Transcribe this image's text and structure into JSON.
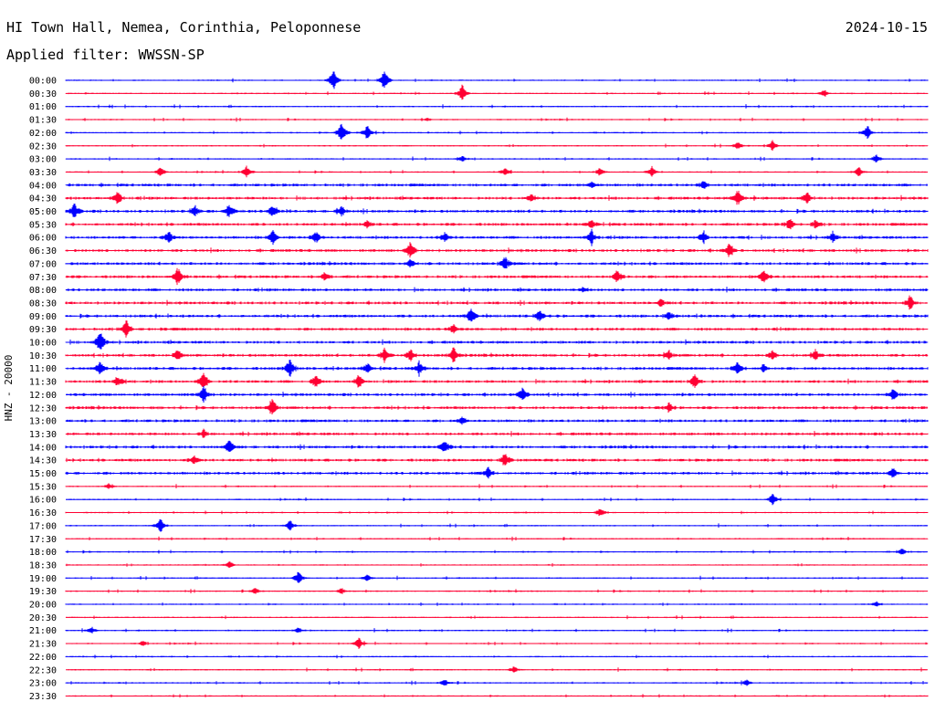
{
  "header": {
    "station": "HI Town Hall, Nemea, Corinthia, Peloponnese",
    "date": "2024-10-15",
    "filter": "Applied filter: WWSSN-SP"
  },
  "chart_data": {
    "type": "line",
    "title": "HI Town Hall, Nemea, Corinthia, Peloponnese",
    "ylabel": "HNZ - 20000",
    "xlabel": "",
    "grid": false,
    "colors": [
      "#0000ff",
      "#ff0033"
    ],
    "traces": [
      {
        "label": "00:00",
        "bursts": [
          [
            0.31,
            2.0
          ],
          [
            0.37,
            1.8
          ]
        ]
      },
      {
        "label": "00:30",
        "bursts": [
          [
            0.46,
            1.4
          ],
          [
            0.88,
            0.6
          ]
        ]
      },
      {
        "label": "01:00",
        "bursts": []
      },
      {
        "label": "01:30",
        "bursts": [
          [
            0.42,
            0.3
          ]
        ]
      },
      {
        "label": "02:00",
        "bursts": [
          [
            0.32,
            1.8
          ],
          [
            0.35,
            1.3
          ],
          [
            0.93,
            1.2
          ]
        ]
      },
      {
        "label": "02:30",
        "bursts": [
          [
            0.78,
            0.7
          ],
          [
            0.82,
            0.8
          ]
        ]
      },
      {
        "label": "03:00",
        "bursts": [
          [
            0.46,
            0.5
          ],
          [
            0.94,
            0.8
          ]
        ]
      },
      {
        "label": "03:30",
        "bursts": [
          [
            0.11,
            0.9
          ],
          [
            0.21,
            1.0
          ],
          [
            0.51,
            0.8
          ],
          [
            0.62,
            0.8
          ],
          [
            0.68,
            0.9
          ],
          [
            0.92,
            0.8
          ]
        ]
      },
      {
        "label": "04:00",
        "bursts": [
          [
            0.61,
            0.6
          ],
          [
            0.74,
            0.7
          ]
        ]
      },
      {
        "label": "04:30",
        "bursts": [
          [
            0.06,
            1.2
          ],
          [
            0.54,
            0.8
          ],
          [
            0.78,
            1.4
          ],
          [
            0.86,
            0.9
          ]
        ]
      },
      {
        "label": "05:00",
        "bursts": [
          [
            0.01,
            1.4
          ],
          [
            0.15,
            0.9
          ],
          [
            0.19,
            1.2
          ],
          [
            0.24,
            1.0
          ],
          [
            0.32,
            0.8
          ]
        ]
      },
      {
        "label": "05:30",
        "bursts": [
          [
            0.35,
            0.6
          ],
          [
            0.61,
            0.7
          ],
          [
            0.84,
            1.0
          ],
          [
            0.87,
            0.8
          ]
        ]
      },
      {
        "label": "06:00",
        "bursts": [
          [
            0.12,
            1.1
          ],
          [
            0.24,
            1.3
          ],
          [
            0.29,
            1.0
          ],
          [
            0.44,
            0.9
          ],
          [
            0.61,
            1.2
          ],
          [
            0.74,
            1.0
          ],
          [
            0.89,
            0.9
          ]
        ]
      },
      {
        "label": "06:30",
        "bursts": [
          [
            0.4,
            1.3
          ],
          [
            0.77,
            1.4
          ]
        ]
      },
      {
        "label": "07:00",
        "bursts": [
          [
            0.4,
            0.8
          ],
          [
            0.51,
            1.3
          ]
        ]
      },
      {
        "label": "07:30",
        "bursts": [
          [
            0.13,
            1.5
          ],
          [
            0.3,
            0.7
          ],
          [
            0.64,
            1.1
          ],
          [
            0.81,
            1.1
          ]
        ]
      },
      {
        "label": "08:00",
        "bursts": [
          [
            0.6,
            0.5
          ]
        ]
      },
      {
        "label": "08:30",
        "bursts": [
          [
            0.69,
            0.7
          ],
          [
            0.98,
            1.2
          ]
        ]
      },
      {
        "label": "09:00",
        "bursts": [
          [
            0.47,
            1.3
          ],
          [
            0.55,
            1.0
          ],
          [
            0.7,
            0.7
          ]
        ]
      },
      {
        "label": "09:30",
        "bursts": [
          [
            0.07,
            1.5
          ],
          [
            0.45,
            0.8
          ]
        ]
      },
      {
        "label": "10:00",
        "bursts": [
          [
            0.04,
            1.8
          ]
        ]
      },
      {
        "label": "10:30",
        "bursts": [
          [
            0.13,
            0.9
          ],
          [
            0.37,
            1.2
          ],
          [
            0.4,
            1.2
          ],
          [
            0.45,
            1.3
          ],
          [
            0.7,
            0.8
          ],
          [
            0.82,
            0.8
          ],
          [
            0.87,
            0.9
          ]
        ]
      },
      {
        "label": "11:00",
        "bursts": [
          [
            0.04,
            1.1
          ],
          [
            0.26,
            1.6
          ],
          [
            0.35,
            0.8
          ],
          [
            0.41,
            1.1
          ],
          [
            0.78,
            1.1
          ],
          [
            0.81,
            0.7
          ]
        ]
      },
      {
        "label": "11:30",
        "bursts": [
          [
            0.06,
            0.9
          ],
          [
            0.16,
            1.6
          ],
          [
            0.29,
            1.1
          ],
          [
            0.34,
            1.1
          ],
          [
            0.73,
            1.5
          ]
        ]
      },
      {
        "label": "12:00",
        "bursts": [
          [
            0.16,
            1.5
          ],
          [
            0.53,
            1.3
          ],
          [
            0.96,
            1.0
          ]
        ]
      },
      {
        "label": "12:30",
        "bursts": [
          [
            0.24,
            1.6
          ],
          [
            0.7,
            0.8
          ]
        ]
      },
      {
        "label": "13:00",
        "bursts": [
          [
            0.46,
            0.6
          ]
        ]
      },
      {
        "label": "13:30",
        "bursts": [
          [
            0.16,
            0.6
          ]
        ]
      },
      {
        "label": "14:00",
        "bursts": [
          [
            0.19,
            1.3
          ],
          [
            0.44,
            1.2
          ]
        ]
      },
      {
        "label": "14:30",
        "bursts": [
          [
            0.51,
            1.3
          ],
          [
            0.15,
            0.7
          ]
        ]
      },
      {
        "label": "15:00",
        "bursts": [
          [
            0.49,
            1.0
          ],
          [
            0.96,
            1.1
          ]
        ]
      },
      {
        "label": "15:30",
        "bursts": [
          [
            0.05,
            0.5
          ]
        ]
      },
      {
        "label": "16:00",
        "bursts": [
          [
            0.82,
            1.1
          ]
        ]
      },
      {
        "label": "16:30",
        "bursts": [
          [
            0.62,
            0.8
          ]
        ]
      },
      {
        "label": "17:00",
        "bursts": [
          [
            0.11,
            1.4
          ],
          [
            0.26,
            1.0
          ]
        ]
      },
      {
        "label": "17:30",
        "bursts": []
      },
      {
        "label": "18:00",
        "bursts": [
          [
            0.97,
            0.6
          ]
        ]
      },
      {
        "label": "18:30",
        "bursts": [
          [
            0.19,
            0.6
          ]
        ]
      },
      {
        "label": "19:00",
        "bursts": [
          [
            0.27,
            1.1
          ],
          [
            0.35,
            0.6
          ]
        ]
      },
      {
        "label": "19:30",
        "bursts": [
          [
            0.22,
            0.6
          ],
          [
            0.32,
            0.5
          ]
        ]
      },
      {
        "label": "20:00",
        "bursts": [
          [
            0.94,
            0.5
          ]
        ]
      },
      {
        "label": "20:30",
        "bursts": []
      },
      {
        "label": "21:00",
        "bursts": [
          [
            0.03,
            0.6
          ],
          [
            0.27,
            0.5
          ]
        ]
      },
      {
        "label": "21:30",
        "bursts": [
          [
            0.34,
            1.0
          ],
          [
            0.09,
            0.5
          ]
        ]
      },
      {
        "label": "22:00",
        "bursts": []
      },
      {
        "label": "22:30",
        "bursts": [
          [
            0.52,
            0.5
          ]
        ]
      },
      {
        "label": "23:00",
        "bursts": [
          [
            0.44,
            0.6
          ],
          [
            0.79,
            0.5
          ]
        ]
      },
      {
        "label": "23:30",
        "bursts": []
      }
    ]
  }
}
